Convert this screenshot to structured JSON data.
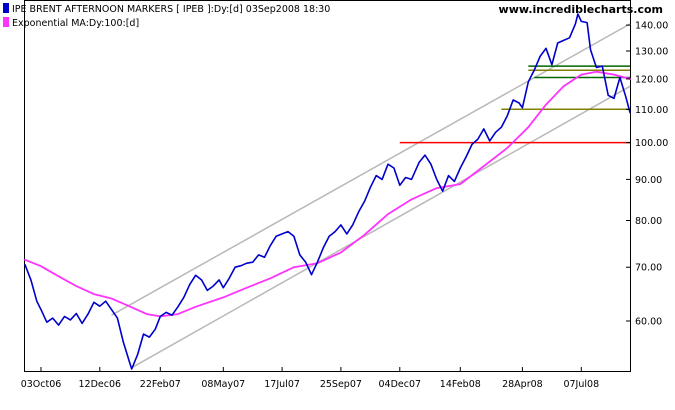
{
  "chart_data": {
    "type": "line",
    "title": "IPE BRENT AFTERNOON MARKERS [ IPEB ]:Dy:[d]  03Sep2008 18:30",
    "watermark": "www.incrediblecharts.com",
    "y_scale": "log",
    "ylim": [
      52,
      150
    ],
    "y_ticks": [
      {
        "value": 60,
        "label": "60.00"
      },
      {
        "value": 70,
        "label": "70.00"
      },
      {
        "value": 80,
        "label": "80.00"
      },
      {
        "value": 90,
        "label": "90.00"
      },
      {
        "value": 100,
        "label": "100.00"
      },
      {
        "value": 110,
        "label": "110.00"
      },
      {
        "value": 120,
        "label": "120.00"
      },
      {
        "value": 130,
        "label": "130.00"
      },
      {
        "value": 140,
        "label": "140.00"
      }
    ],
    "xlim": [
      "2006-09-14",
      "2008-09-03"
    ],
    "x_ticks": [
      {
        "date": "2006-10-03",
        "label": "03Oct06"
      },
      {
        "date": "2006-12-12",
        "label": "12Dec06"
      },
      {
        "date": "2007-02-22",
        "label": "22Feb07"
      },
      {
        "date": "2007-05-08",
        "label": "08May07"
      },
      {
        "date": "2007-07-17",
        "label": "17Jul07"
      },
      {
        "date": "2007-09-25",
        "label": "25Sep07"
      },
      {
        "date": "2007-12-04",
        "label": "04Dec07"
      },
      {
        "date": "2008-02-14",
        "label": "14Feb08"
      },
      {
        "date": "2008-04-28",
        "label": "28Apr08"
      },
      {
        "date": "2008-07-07",
        "label": "07Jul08"
      }
    ],
    "series": [
      {
        "name": "IPE BRENT AFTERNOON MARKERS [ IPEB ]:Dy:[d]",
        "color": "#0000cc",
        "points": [
          [
            "2006-09-14",
            70.5
          ],
          [
            "2006-09-21",
            67.5
          ],
          [
            "2006-09-28",
            63.5
          ],
          [
            "2006-10-03",
            62.0
          ],
          [
            "2006-10-10",
            59.8
          ],
          [
            "2006-10-17",
            60.5
          ],
          [
            "2006-10-24",
            59.3
          ],
          [
            "2006-10-31",
            60.8
          ],
          [
            "2006-11-07",
            60.2
          ],
          [
            "2006-11-14",
            61.3
          ],
          [
            "2006-11-21",
            59.6
          ],
          [
            "2006-11-28",
            61.2
          ],
          [
            "2006-12-05",
            63.3
          ],
          [
            "2006-12-12",
            62.6
          ],
          [
            "2006-12-19",
            63.5
          ],
          [
            "2006-12-26",
            62.0
          ],
          [
            "2007-01-02",
            60.5
          ],
          [
            "2007-01-09",
            56.5
          ],
          [
            "2007-01-16",
            53.5
          ],
          [
            "2007-01-19",
            52.3
          ],
          [
            "2007-01-26",
            54.5
          ],
          [
            "2007-02-02",
            57.8
          ],
          [
            "2007-02-09",
            57.3
          ],
          [
            "2007-02-16",
            58.6
          ],
          [
            "2007-02-22",
            60.8
          ],
          [
            "2007-03-01",
            61.5
          ],
          [
            "2007-03-08",
            61.0
          ],
          [
            "2007-03-15",
            62.5
          ],
          [
            "2007-03-22",
            64.2
          ],
          [
            "2007-03-29",
            66.6
          ],
          [
            "2007-04-05",
            68.4
          ],
          [
            "2007-04-12",
            67.5
          ],
          [
            "2007-04-19",
            65.5
          ],
          [
            "2007-04-26",
            66.3
          ],
          [
            "2007-05-03",
            67.5
          ],
          [
            "2007-05-08",
            66.0
          ],
          [
            "2007-05-15",
            67.8
          ],
          [
            "2007-05-22",
            70.0
          ],
          [
            "2007-05-29",
            70.3
          ],
          [
            "2007-06-05",
            70.8
          ],
          [
            "2007-06-12",
            71.0
          ],
          [
            "2007-06-19",
            72.5
          ],
          [
            "2007-06-26",
            72.0
          ],
          [
            "2007-07-03",
            74.5
          ],
          [
            "2007-07-10",
            76.5
          ],
          [
            "2007-07-17",
            77.0
          ],
          [
            "2007-07-24",
            77.5
          ],
          [
            "2007-07-31",
            76.5
          ],
          [
            "2007-08-07",
            72.5
          ],
          [
            "2007-08-14",
            71.0
          ],
          [
            "2007-08-21",
            68.5
          ],
          [
            "2007-08-28",
            71.0
          ],
          [
            "2007-09-04",
            74.0
          ],
          [
            "2007-09-11",
            76.5
          ],
          [
            "2007-09-18",
            77.5
          ],
          [
            "2007-09-25",
            79.0
          ],
          [
            "2007-10-02",
            77.0
          ],
          [
            "2007-10-09",
            79.0
          ],
          [
            "2007-10-16",
            82.0
          ],
          [
            "2007-10-23",
            84.5
          ],
          [
            "2007-10-30",
            88.0
          ],
          [
            "2007-11-06",
            91.0
          ],
          [
            "2007-11-13",
            90.0
          ],
          [
            "2007-11-20",
            94.0
          ],
          [
            "2007-11-27",
            93.0
          ],
          [
            "2007-12-04",
            88.5
          ],
          [
            "2007-12-11",
            90.5
          ],
          [
            "2007-12-18",
            90.0
          ],
          [
            "2007-12-27",
            94.5
          ],
          [
            "2008-01-03",
            96.5
          ],
          [
            "2008-01-10",
            94.0
          ],
          [
            "2008-01-17",
            90.0
          ],
          [
            "2008-01-24",
            87.0
          ],
          [
            "2008-01-31",
            91.0
          ],
          [
            "2008-02-07",
            89.5
          ],
          [
            "2008-02-14",
            93.0
          ],
          [
            "2008-02-21",
            96.0
          ],
          [
            "2008-02-28",
            99.5
          ],
          [
            "2008-03-06",
            101.0
          ],
          [
            "2008-03-13",
            104.0
          ],
          [
            "2008-03-20",
            100.5
          ],
          [
            "2008-03-27",
            103.0
          ],
          [
            "2008-04-03",
            104.5
          ],
          [
            "2008-04-10",
            108.0
          ],
          [
            "2008-04-17",
            113.0
          ],
          [
            "2008-04-24",
            112.0
          ],
          [
            "2008-04-28",
            110.5
          ],
          [
            "2008-05-05",
            119.0
          ],
          [
            "2008-05-12",
            123.0
          ],
          [
            "2008-05-19",
            128.0
          ],
          [
            "2008-05-26",
            131.0
          ],
          [
            "2008-06-02",
            125.0
          ],
          [
            "2008-06-09",
            133.0
          ],
          [
            "2008-06-16",
            134.0
          ],
          [
            "2008-06-23",
            135.0
          ],
          [
            "2008-06-30",
            140.5
          ],
          [
            "2008-07-03",
            144.5
          ],
          [
            "2008-07-07",
            141.5
          ],
          [
            "2008-07-14",
            141.0
          ],
          [
            "2008-07-18",
            130.5
          ],
          [
            "2008-07-25",
            124.0
          ],
          [
            "2008-08-01",
            124.5
          ],
          [
            "2008-08-08",
            114.5
          ],
          [
            "2008-08-15",
            113.5
          ],
          [
            "2008-08-22",
            120.5
          ],
          [
            "2008-08-29",
            114.0
          ],
          [
            "2008-09-03",
            109.0
          ]
        ]
      },
      {
        "name": "Exponential MA:Dy:100:[d]",
        "color": "#ff33ff",
        "points": [
          [
            "2006-09-14",
            71.5
          ],
          [
            "2006-10-03",
            70.2
          ],
          [
            "2006-10-24",
            68.2
          ],
          [
            "2006-11-14",
            66.3
          ],
          [
            "2006-12-05",
            64.8
          ],
          [
            "2006-12-26",
            64.0
          ],
          [
            "2007-01-16",
            62.6
          ],
          [
            "2007-02-06",
            61.2
          ],
          [
            "2007-02-22",
            60.8
          ],
          [
            "2007-03-15",
            61.2
          ],
          [
            "2007-04-05",
            62.5
          ],
          [
            "2007-05-08",
            64.2
          ],
          [
            "2007-06-05",
            66.0
          ],
          [
            "2007-07-03",
            67.8
          ],
          [
            "2007-07-31",
            70.0
          ],
          [
            "2007-08-28",
            70.8
          ],
          [
            "2007-09-25",
            73.0
          ],
          [
            "2007-10-23",
            76.8
          ],
          [
            "2007-11-20",
            81.5
          ],
          [
            "2007-12-18",
            85.0
          ],
          [
            "2008-01-17",
            87.8
          ],
          [
            "2008-02-14",
            88.8
          ],
          [
            "2008-03-13",
            93.5
          ],
          [
            "2008-04-10",
            98.5
          ],
          [
            "2008-05-05",
            104.5
          ],
          [
            "2008-05-26",
            111.5
          ],
          [
            "2008-06-16",
            117.5
          ],
          [
            "2008-07-07",
            121.5
          ],
          [
            "2008-07-25",
            122.5
          ],
          [
            "2008-08-15",
            121.5
          ],
          [
            "2008-09-03",
            120.0
          ]
        ]
      }
    ],
    "channel_lines": [
      {
        "color": "#b8b8b8",
        "points": [
          [
            "2006-12-26",
            61.0
          ],
          [
            "2008-09-03",
            140.5
          ]
        ]
      },
      {
        "color": "#b8b8b8",
        "points": [
          [
            "2007-01-19",
            52.5
          ],
          [
            "2008-09-03",
            117.5
          ]
        ]
      }
    ],
    "horizontal_lines": [
      {
        "color": "#ff0000",
        "y": 100.0,
        "from": "2007-12-04",
        "to": "2008-09-03"
      },
      {
        "color": "#808000",
        "y": 110.0,
        "from": "2008-04-03",
        "to": "2008-09-03"
      },
      {
        "color": "#808000",
        "y": 123.0,
        "from": "2008-05-05",
        "to": "2008-09-03"
      },
      {
        "color": "#006600",
        "y": 124.5,
        "from": "2008-05-05",
        "to": "2008-09-03"
      },
      {
        "color": "#006600",
        "y": 120.5,
        "from": "2008-05-12",
        "to": "2008-09-03"
      }
    ],
    "legend": [
      {
        "label": "IPE BRENT AFTERNOON MARKERS [ IPEB ]:Dy:[d]  03Sep2008 18:30",
        "color": "#0000cc"
      },
      {
        "label": "Exponential MA:Dy:100:[d]",
        "color": "#ff33ff"
      }
    ],
    "legend_position": "top-left",
    "grid": false
  }
}
